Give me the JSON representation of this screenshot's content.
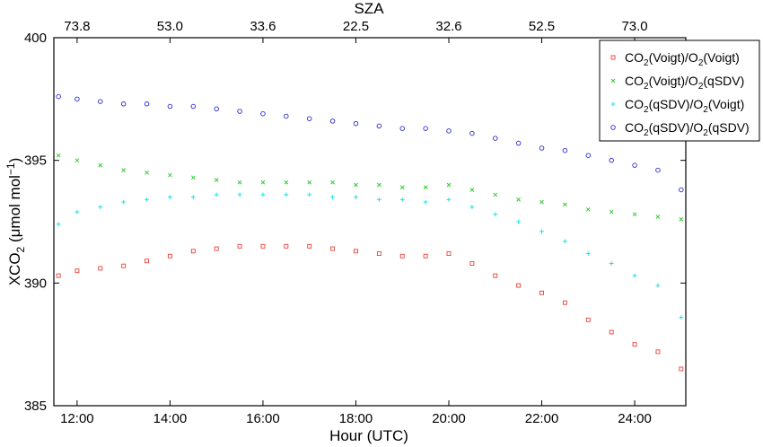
{
  "chart_data": {
    "type": "scatter",
    "xlabel": "Hour (UTC)",
    "ylabel_parts": {
      "base": "XCO",
      "sub": "2",
      "units_pre": " (μmol mol",
      "sup": "−1",
      "units_post": ")"
    },
    "top_axis_label": "SZA",
    "xlim": [
      11.5,
      25.1
    ],
    "ylim": [
      385,
      400
    ],
    "x_tick_values": [
      12,
      14,
      16,
      18,
      20,
      22,
      24
    ],
    "x_tick_labels": [
      "12:00",
      "14:00",
      "16:00",
      "18:00",
      "20:00",
      "22:00",
      "24:00"
    ],
    "y_tick_values": [
      385,
      390,
      395,
      400
    ],
    "y_tick_labels": [
      "385",
      "390",
      "395",
      "400"
    ],
    "top_tick_labels": [
      "73.8",
      "53.0",
      "33.6",
      "22.5",
      "32.6",
      "52.5",
      "73.0"
    ],
    "grid": false,
    "legend_position": "top-right",
    "series": [
      {
        "name": "CO2(Voigt)/O2(Voigt)",
        "name_parts": [
          "CO",
          "2",
          "(Voigt)/O",
          "2",
          "(Voigt)"
        ],
        "color": "#e8413a",
        "marker": "square",
        "x": [
          11.6,
          12.0,
          12.5,
          13.0,
          13.5,
          14.0,
          14.5,
          15.0,
          15.5,
          16.0,
          16.5,
          17.0,
          17.5,
          18.0,
          18.5,
          19.0,
          19.5,
          20.0,
          20.5,
          21.0,
          21.5,
          22.0,
          22.5,
          23.0,
          23.5,
          24.0,
          24.5,
          25.0
        ],
        "y": [
          390.3,
          390.5,
          390.6,
          390.7,
          390.9,
          391.1,
          391.3,
          391.4,
          391.5,
          391.5,
          391.5,
          391.5,
          391.4,
          391.3,
          391.2,
          391.1,
          391.1,
          391.2,
          390.8,
          390.3,
          389.9,
          389.6,
          389.2,
          388.5,
          388.0,
          387.5,
          387.2,
          386.5
        ]
      },
      {
        "name": "CO2(Voigt)/O2(qSDV)",
        "name_parts": [
          "CO",
          "2",
          "(Voigt)/O",
          "2",
          "(qSDV)"
        ],
        "color": "#33cc33",
        "marker": "cross",
        "x": [
          11.6,
          12.0,
          12.5,
          13.0,
          13.5,
          14.0,
          14.5,
          15.0,
          15.5,
          16.0,
          16.5,
          17.0,
          17.5,
          18.0,
          18.5,
          19.0,
          19.5,
          20.0,
          20.5,
          21.0,
          21.5,
          22.0,
          22.5,
          23.0,
          23.5,
          24.0,
          24.5,
          25.0
        ],
        "y": [
          395.2,
          395.0,
          394.8,
          394.6,
          394.5,
          394.4,
          394.3,
          394.2,
          394.1,
          394.1,
          394.1,
          394.1,
          394.1,
          394.0,
          394.0,
          393.9,
          393.9,
          394.0,
          393.8,
          393.6,
          393.4,
          393.3,
          393.2,
          393.0,
          392.9,
          392.8,
          392.7,
          392.6
        ]
      },
      {
        "name": "CO2(qSDV)/O2(Voigt)",
        "name_parts": [
          "CO",
          "2",
          "(qSDV)/O",
          "2",
          "(Voigt)"
        ],
        "color": "#22e0e8",
        "marker": "plus",
        "x": [
          11.6,
          12.0,
          12.5,
          13.0,
          13.5,
          14.0,
          14.5,
          15.0,
          15.5,
          16.0,
          16.5,
          17.0,
          17.5,
          18.0,
          18.5,
          19.0,
          19.5,
          20.0,
          20.5,
          21.0,
          21.5,
          22.0,
          22.5,
          23.0,
          23.5,
          24.0,
          24.5,
          25.0
        ],
        "y": [
          392.4,
          392.9,
          393.1,
          393.3,
          393.4,
          393.5,
          393.5,
          393.6,
          393.6,
          393.6,
          393.6,
          393.6,
          393.5,
          393.5,
          393.4,
          393.4,
          393.3,
          393.4,
          393.1,
          392.8,
          392.5,
          392.1,
          391.7,
          391.2,
          390.8,
          390.3,
          389.9,
          388.6
        ]
      },
      {
        "name": "CO2(qSDV)/O2(qSDV)",
        "name_parts": [
          "CO",
          "2",
          "(qSDV)/O",
          "2",
          "(qSDV)"
        ],
        "color": "#2a2ad0",
        "marker": "circle",
        "x": [
          11.6,
          12.0,
          12.5,
          13.0,
          13.5,
          14.0,
          14.5,
          15.0,
          15.5,
          16.0,
          16.5,
          17.0,
          17.5,
          18.0,
          18.5,
          19.0,
          19.5,
          20.0,
          20.5,
          21.0,
          21.5,
          22.0,
          22.5,
          23.0,
          23.5,
          24.0,
          24.5,
          25.0
        ],
        "y": [
          397.6,
          397.5,
          397.4,
          397.3,
          397.3,
          397.2,
          397.2,
          397.1,
          397.0,
          396.9,
          396.8,
          396.7,
          396.6,
          396.5,
          396.4,
          396.3,
          396.3,
          396.2,
          396.1,
          395.9,
          395.7,
          395.5,
          395.4,
          395.2,
          395.0,
          394.8,
          394.6,
          393.8
        ]
      }
    ]
  }
}
